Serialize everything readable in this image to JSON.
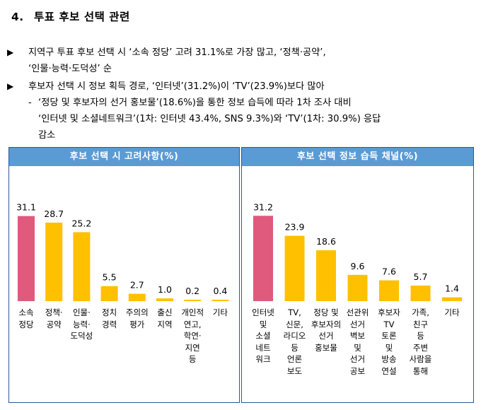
{
  "heading": {
    "number": "4.",
    "title": "투표 후보 선택 관련"
  },
  "bullets": [
    {
      "mark": "▶",
      "lines": [
        "지역구 투표 후보 선택 시 ‘소속 정당’ 고려 31.1%로 가장 많고, ‘정책·공약’,",
        "‘인물·능력·도덕성’ 순"
      ]
    },
    {
      "mark": "▶",
      "lines": [
        "후보자 선택 시 정보 획득 경로, ‘인터넷’(31.2%)이 ‘TV’(23.9%)보다 많아"
      ]
    }
  ],
  "sub_bullet": {
    "mark": "-",
    "lines": [
      "‘정당 및 후보자의 선거 홍보물’(18.6%)을 통한 정보 습득에 따라 1차 조사 대비",
      "‘인터넷 및 소셜네트워크’(1차: 인터넷 43.4%, SNS 9.3%)와 ‘TV’(1차: 30.9%) 응답",
      "감소"
    ]
  },
  "colors": {
    "highlight": "#e05a7d",
    "bar": "#ffc000",
    "header": "#5b9bd5",
    "border": "#2f5597"
  },
  "chart_data": [
    {
      "type": "bar",
      "title": "후보 선택 시 고려사항(%)",
      "categories": [
        "소속\n정당",
        "정책·\n공약",
        "인물·\n능력·\n도덕성",
        "정치\n경력",
        "주의의\n평가",
        "출신\n지역",
        "개인적\n연고,\n학연·\n지연\n등",
        "기타"
      ],
      "values": [
        "31.1",
        "28.7",
        "25.2",
        "5.5",
        "2.7",
        "1.0",
        "0.2",
        "0.4"
      ],
      "highlight_index": 0,
      "ylim": [
        0,
        31.1
      ]
    },
    {
      "type": "bar",
      "title": "후보 선택 정보 습득 채널(%)",
      "categories": [
        "인터넷\n및\n소셜\n네트\n워크",
        "TV,\n신문,\n라디오\n등\n언론\n보도",
        "정당 및\n후보자의\n선거\n홍보물",
        "선관위\n선거\n벽보\n및\n선거\n공보",
        "후보자\nTV\n토론\n및\n방송\n연설",
        "가족,\n친구\n등\n주변\n사람을\n통해",
        "기타"
      ],
      "values": [
        "31.2",
        "23.9",
        "18.6",
        "9.6",
        "7.6",
        "5.7",
        "1.4"
      ],
      "highlight_index": 0,
      "ylim": [
        0,
        31.2
      ]
    }
  ]
}
